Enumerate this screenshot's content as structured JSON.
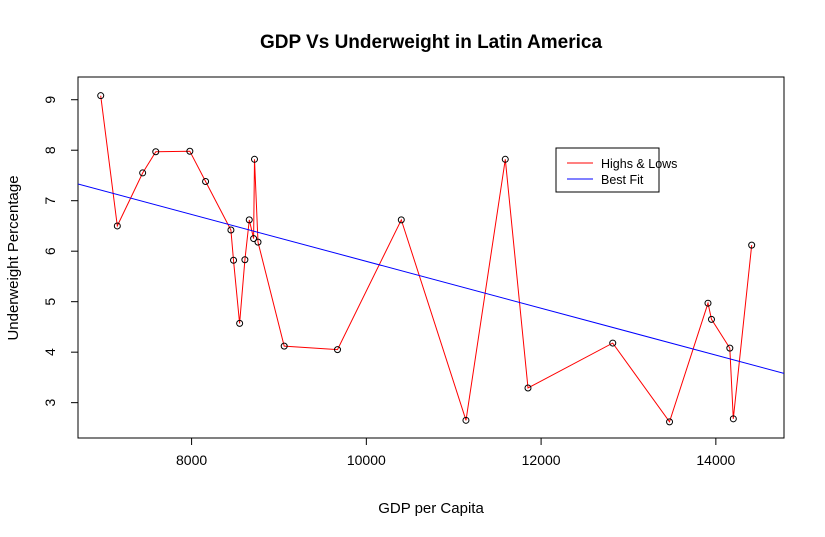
{
  "chart_data": {
    "type": "line",
    "title": "GDP Vs Underweight in Latin America",
    "xlabel": "GDP per Capita",
    "ylabel": "Underweight Percentage",
    "xlim": [
      6700,
      14780
    ],
    "ylim": [
      2.3,
      9.45
    ],
    "x_ticks": [
      8000,
      10000,
      12000,
      14000
    ],
    "x_tick_labels": [
      "8000",
      "10000",
      "12000",
      "14000"
    ],
    "y_ticks": [
      3,
      4,
      5,
      6,
      7,
      8,
      9
    ],
    "y_tick_labels": [
      "3",
      "4",
      "5",
      "6",
      "7",
      "8",
      "9"
    ],
    "grid": false,
    "legend_position": "top-right",
    "series": [
      {
        "name": "Highs & Lows",
        "color": "#ff0000",
        "style": "line-with-points",
        "x": [
          6960,
          7150,
          7440,
          7590,
          7980,
          8160,
          8450,
          8480,
          8550,
          8610,
          8660,
          8710,
          8720,
          8760,
          9060,
          9670,
          10400,
          11140,
          11590,
          11850,
          12820,
          13470,
          13910,
          13950,
          14160,
          14200,
          14410
        ],
        "y": [
          9.08,
          6.5,
          7.55,
          7.97,
          7.98,
          7.38,
          6.42,
          5.82,
          4.57,
          5.83,
          6.62,
          6.25,
          7.82,
          6.18,
          4.12,
          4.05,
          6.62,
          2.65,
          7.82,
          3.29,
          4.18,
          2.62,
          4.97,
          4.65,
          4.08,
          2.68,
          6.12
        ]
      },
      {
        "name": "Best Fit",
        "color": "#0000ff",
        "style": "line",
        "x": [
          6700,
          14780
        ],
        "y": [
          7.33,
          3.58
        ]
      }
    ]
  }
}
